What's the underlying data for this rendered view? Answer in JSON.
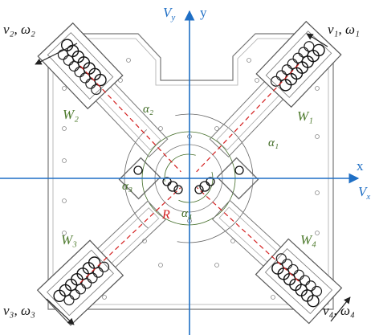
{
  "axes": {
    "vy": {
      "base": "V",
      "sub": "y"
    },
    "y": "y",
    "x": "x",
    "vx": {
      "base": "V",
      "sub": "x"
    }
  },
  "wheels": [
    {
      "velocity": "v₁, ω₁",
      "label": "W₁",
      "angle": "α₁"
    },
    {
      "velocity": "v₂, ω₂",
      "label": "W₂",
      "angle": "α₂"
    },
    {
      "velocity": "v₃, ω₃",
      "label": "W₃",
      "angle": "α₃"
    },
    {
      "velocity": "v₄, ω₄",
      "label": "W₄",
      "angle": "α₄"
    }
  ],
  "center": "R"
}
